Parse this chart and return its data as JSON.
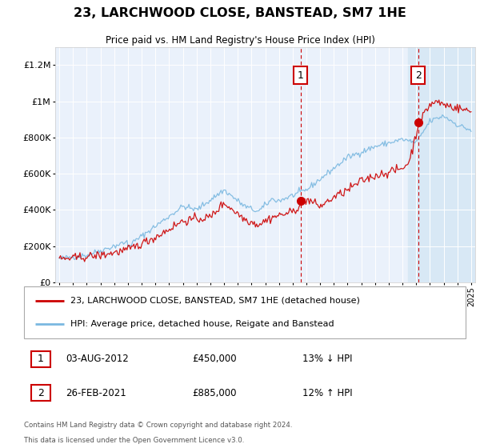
{
  "title": "23, LARCHWOOD CLOSE, BANSTEAD, SM7 1HE",
  "subtitle": "Price paid vs. HM Land Registry's House Price Index (HPI)",
  "ylabel_ticks": [
    "£0",
    "£200K",
    "£400K",
    "£600K",
    "£800K",
    "£1M",
    "£1.2M"
  ],
  "ytick_values": [
    0,
    200000,
    400000,
    600000,
    800000,
    1000000,
    1200000
  ],
  "ylim": [
    0,
    1300000
  ],
  "xlim_start": 1994.7,
  "xlim_end": 2025.3,
  "ann1_x": 2012.58,
  "ann1_price": 450000,
  "ann1_date": "03-AUG-2012",
  "ann1_pct": "13% ↓ HPI",
  "ann2_x": 2021.15,
  "ann2_price": 885000,
  "ann2_date": "26-FEB-2021",
  "ann2_pct": "12% ↑ HPI",
  "legend_line1": "23, LARCHWOOD CLOSE, BANSTEAD, SM7 1HE (detached house)",
  "legend_line2": "HPI: Average price, detached house, Reigate and Banstead",
  "footnote1": "Contains HM Land Registry data © Crown copyright and database right 2024.",
  "footnote2": "This data is licensed under the Open Government Licence v3.0.",
  "hpi_color": "#7ab8e0",
  "price_color": "#cc0000",
  "bg_main": "#eaf1fb",
  "bg_shaded": "#d8e8f5",
  "shaded_start": 2020.42,
  "shaded_end": 2025.3,
  "grid_color": "#ffffff",
  "spine_color": "#cccccc"
}
